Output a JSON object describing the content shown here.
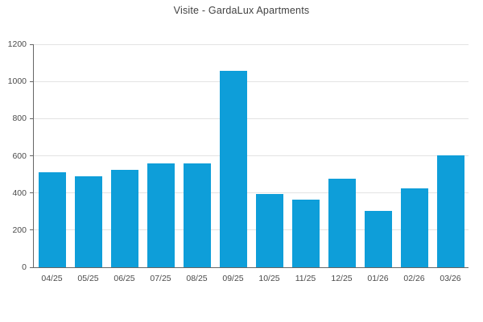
{
  "page": {
    "background": "#ffffff"
  },
  "chart_data": {
    "type": "bar",
    "title": "Visite - GardaLux Apartments",
    "categories": [
      "04/25",
      "05/25",
      "06/25",
      "07/25",
      "08/25",
      "09/25",
      "10/25",
      "11/25",
      "12/25",
      "01/26",
      "02/26",
      "03/26"
    ],
    "values": [
      510,
      490,
      525,
      560,
      560,
      1055,
      395,
      365,
      475,
      305,
      425,
      600
    ],
    "xlabel": "",
    "ylabel": "",
    "ylim": [
      0,
      1200
    ],
    "yticks": [
      0,
      200,
      400,
      600,
      800,
      1000,
      1200
    ],
    "grid": true,
    "legend_position": "none",
    "bar_color": "#0e9ed9",
    "axis_color": "#666666",
    "gridline_color": "#e3e3e3",
    "tick_label_color": "#4a4a4a",
    "title_color": "#424242"
  }
}
